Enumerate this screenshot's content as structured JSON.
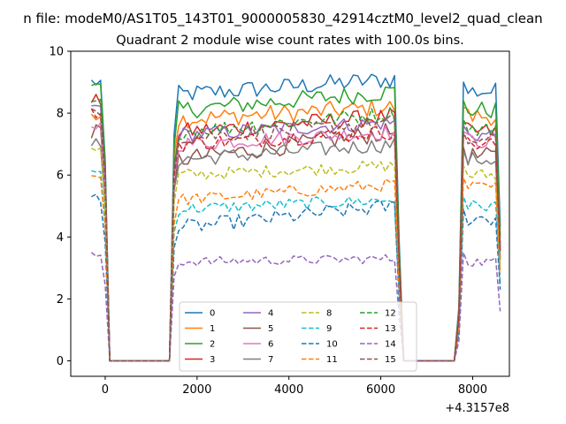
{
  "suptitle": "n file: modeM0/AS1T05_143T01_9000005830_42914cztM0_level2_quad_clean",
  "chart_data": {
    "type": "line",
    "title": "Quadrant 2 module wise count rates with 100.0s bins.",
    "xlabel": "",
    "ylabel": "",
    "x_offset_label": "+4.3157e8",
    "xlim": [
      -750,
      8800
    ],
    "ylim": [
      -0.5,
      10
    ],
    "xticks": [
      0,
      2000,
      4000,
      6000,
      8000
    ],
    "yticks": [
      0,
      2,
      4,
      6,
      8,
      10
    ],
    "grid": false,
    "legend": {
      "placement": "lower center",
      "ncol": 4
    },
    "x_segments": [
      {
        "start": -300,
        "end": 0,
        "step": 100
      },
      {
        "start": 100,
        "end": 1300,
        "step": 100
      },
      {
        "start": 1400,
        "end": 6400,
        "step": 100
      },
      {
        "start": 6500,
        "end": 7600,
        "step": 100
      },
      {
        "start": 7700,
        "end": 8600,
        "step": 100
      }
    ],
    "series": [
      {
        "name": "0",
        "color": "#1f77b4",
        "dash": "solid",
        "level_on": 8.6,
        "level_a": 9.0,
        "level_b": 8.7,
        "trend": 0.5,
        "noise": 0.3
      },
      {
        "name": "1",
        "color": "#ff7f0e",
        "dash": "solid",
        "level_on": 7.8,
        "level_a": 8.0,
        "level_b": 7.9,
        "trend": 0.4,
        "noise": 0.3
      },
      {
        "name": "2",
        "color": "#2ca02c",
        "dash": "solid",
        "level_on": 8.1,
        "level_a": 8.8,
        "level_b": 8.1,
        "trend": 0.6,
        "noise": 0.3
      },
      {
        "name": "3",
        "color": "#d62728",
        "dash": "solid",
        "level_on": 7.4,
        "level_a": 8.4,
        "level_b": 7.4,
        "trend": 0.5,
        "noise": 0.28
      },
      {
        "name": "4",
        "color": "#9467bd",
        "dash": "solid",
        "level_on": 7.3,
        "level_a": 8.2,
        "level_b": 7.3,
        "trend": 0.4,
        "noise": 0.25
      },
      {
        "name": "5",
        "color": "#8c564b",
        "dash": "solid",
        "level_on": 6.5,
        "level_a": 7.4,
        "level_b": 6.6,
        "trend": 0.9,
        "noise": 0.3
      },
      {
        "name": "6",
        "color": "#e377c2",
        "dash": "solid",
        "level_on": 7.0,
        "level_a": 7.6,
        "level_b": 7.1,
        "trend": 0.4,
        "noise": 0.25
      },
      {
        "name": "7",
        "color": "#7f7f7f",
        "dash": "solid",
        "level_on": 6.5,
        "level_a": 7.0,
        "level_b": 6.5,
        "trend": 0.5,
        "noise": 0.25
      },
      {
        "name": "8",
        "color": "#bcbd22",
        "dash": "dashed",
        "level_on": 6.0,
        "level_a": 6.8,
        "level_b": 6.0,
        "trend": 0.3,
        "noise": 0.2
      },
      {
        "name": "9",
        "color": "#17becf",
        "dash": "dashed",
        "level_on": 4.9,
        "level_a": 6.1,
        "level_b": 5.0,
        "trend": 0.3,
        "noise": 0.2
      },
      {
        "name": "10",
        "color": "#1f77b4",
        "dash": "dashed",
        "level_on": 4.3,
        "level_a": 5.3,
        "level_b": 4.6,
        "trend": 0.7,
        "noise": 0.25
      },
      {
        "name": "11",
        "color": "#ff7f0e",
        "dash": "dashed",
        "level_on": 5.2,
        "level_a": 6.0,
        "level_b": 5.6,
        "trend": 0.5,
        "noise": 0.2
      },
      {
        "name": "12",
        "color": "#2ca02c",
        "dash": "dashed",
        "level_on": 7.4,
        "level_a": 8.3,
        "level_b": 7.5,
        "trend": 0.6,
        "noise": 0.25
      },
      {
        "name": "13",
        "color": "#d62728",
        "dash": "dashed",
        "level_on": 7.0,
        "level_a": 8.0,
        "level_b": 7.0,
        "trend": 0.4,
        "noise": 0.25
      },
      {
        "name": "14",
        "color": "#9467bd",
        "dash": "dashed",
        "level_on": 3.2,
        "level_a": 3.4,
        "level_b": 3.2,
        "trend": 0.1,
        "noise": 0.15
      },
      {
        "name": "15",
        "color": "#8c564b",
        "dash": "dashed",
        "level_on": 7.2,
        "level_a": 8.1,
        "level_b": 7.1,
        "trend": 0.5,
        "noise": 0.25
      }
    ]
  }
}
